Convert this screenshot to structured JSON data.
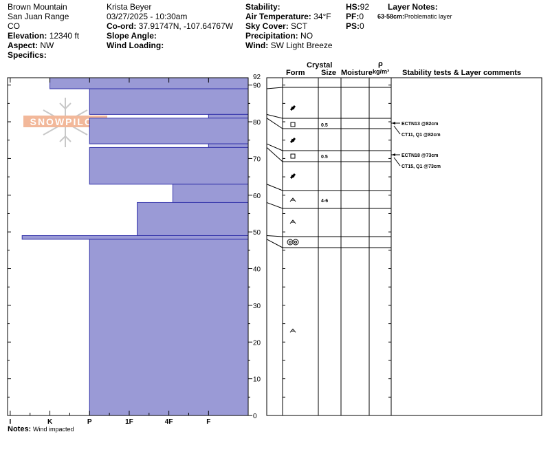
{
  "header": {
    "location": "Brown Mountain",
    "range": "San Juan Range",
    "state": "CO",
    "elevation_label": "Elevation:",
    "elevation": "12340 ft",
    "aspect_label": "Aspect:",
    "aspect": "NW",
    "specifics_label": "Specifics:",
    "observer": "Krista Beyer",
    "datetime": "03/27/2025 - 10:30am",
    "coord_label": "Co-ord:",
    "coord": "37.91747N, -107.64767W",
    "slope_label": "Slope Angle:",
    "wind_loading_label": "Wind Loading:",
    "stability_label": "Stability:",
    "air_temp_label": "Air Temperature:",
    "air_temp": "34°F",
    "sky_label": "Sky Cover:",
    "sky": "SCT",
    "precip_label": "Precipitation:",
    "precip": "NO",
    "wind_label": "Wind:",
    "wind": "SW Light Breeze",
    "hs_label": "HS:",
    "hs": "92",
    "pf_label": "PF:",
    "pf": "0",
    "ps_label": "PS:",
    "ps": "0",
    "layer_notes_title": "Layer Notes:",
    "layer_note_range": "63-58cm:",
    "layer_note_text": "Problematic layer"
  },
  "columns": {
    "crystal": "Crystal",
    "form": "Form",
    "size": "Size",
    "moisture": "Moisture",
    "rho": "ρ",
    "density_unit": "kg/m³",
    "tests": "Stability tests & Layer comments"
  },
  "logo_text": "SNOWPILOT",
  "notes_label": "Notes:",
  "notes_text": "Wind impacted",
  "chart_data": {
    "type": "bar",
    "title": "",
    "ylabel": "",
    "ylim": [
      0,
      92
    ],
    "y_ticks": [
      0,
      10,
      20,
      30,
      40,
      50,
      60,
      70,
      80,
      90
    ],
    "y_tick_labels": [
      "0",
      "10",
      "20",
      "30",
      "40",
      "50",
      "60",
      "70",
      "80",
      "90"
    ],
    "top_label": "92",
    "hardness_scale": [
      "F",
      "4F",
      "1F",
      "P",
      "K",
      "I"
    ],
    "hardness_ticks": [
      {
        "label": "I",
        "h": 6
      },
      {
        "label": "K",
        "h": 5
      },
      {
        "label": "P",
        "h": 4
      },
      {
        "label": "1F",
        "h": 3
      },
      {
        "label": "4F",
        "h": 2
      },
      {
        "label": "F",
        "h": 1
      }
    ],
    "layers": [
      {
        "top": 92,
        "bottom": 89,
        "hardness": 5.0
      },
      {
        "top": 89,
        "bottom": 82,
        "hardness": 4.0
      },
      {
        "top": 82,
        "bottom": 81,
        "hardness": 1.0
      },
      {
        "top": 81,
        "bottom": 74,
        "hardness": 4.0
      },
      {
        "top": 74,
        "bottom": 73,
        "hardness": 1.0
      },
      {
        "top": 73,
        "bottom": 63,
        "hardness": 4.0
      },
      {
        "top": 63,
        "bottom": 58,
        "hardness": 1.9
      },
      {
        "top": 58,
        "bottom": 49,
        "hardness": 2.8
      },
      {
        "top": 49,
        "bottom": 48,
        "hardness": 5.7
      },
      {
        "top": 48,
        "bottom": 0,
        "hardness": 4.0
      }
    ],
    "crystals": [
      {
        "height": 86.5,
        "form": "pp",
        "size": ""
      },
      {
        "height": 81.5,
        "form": "fc",
        "size": "0.5"
      },
      {
        "height": 77.5,
        "form": "pp",
        "size": ""
      },
      {
        "height": 73.5,
        "form": "fc",
        "size": "0.5"
      },
      {
        "height": 68,
        "form": "pp",
        "size": ""
      },
      {
        "height": 60.5,
        "form": "dh",
        "size": "4-6"
      },
      {
        "height": 54,
        "form": "dh",
        "size": ""
      },
      {
        "height": 48.5,
        "form": "mf",
        "size": ""
      },
      {
        "height": 23,
        "form": "dh",
        "size": ""
      }
    ],
    "tests": [
      {
        "height": 82,
        "text": "ECTN13 @82cm"
      },
      {
        "height": 79.5,
        "text": "CT11, Q1 @82cm"
      },
      {
        "height": 73,
        "text": "ECTN18 @73cm"
      },
      {
        "height": 70.5,
        "text": "CT15, Q1 @73cm"
      }
    ]
  }
}
